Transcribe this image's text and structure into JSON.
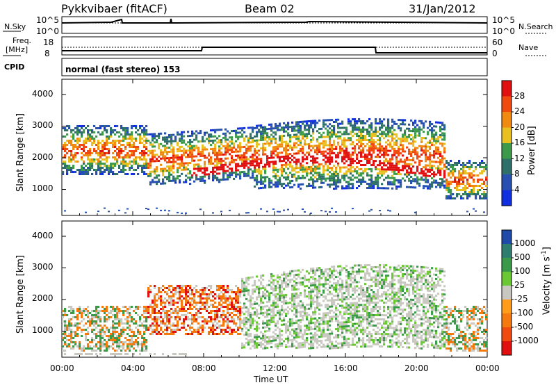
{
  "header": {
    "station": "Pykkvibaer (fitACF)",
    "beam": "Beam 02",
    "date": "31/Jan/2012"
  },
  "status_panels": {
    "nsky_label": "N.Sky",
    "nsearch_label": "N.Search",
    "freq_label_top": "Freq.",
    "freq_label_unit": "[MHz]",
    "nave_label": "Nave",
    "cpid_label": "CPID",
    "cpid_value": "normal (fast stereo) 153",
    "noise_ticks": [
      "10^5",
      "10^0"
    ],
    "freq_ticks": [
      "18",
      "8"
    ],
    "nave_ticks": [
      "60",
      "0"
    ]
  },
  "power_panel": {
    "ylabel": "Slant Range [km]",
    "colorbar_label": "Power [dB]",
    "colorbar_ticks": [
      "28",
      "24",
      "20",
      "16",
      "12",
      "8",
      "4"
    ],
    "colorbar_colors": [
      "#e01010",
      "#f04a10",
      "#f08a10",
      "#e8c020",
      "#3d9a4a",
      "#2f6f6a",
      "#2850b0",
      "#1030e0"
    ]
  },
  "velocity_panel": {
    "ylabel": "Slant Range [km]",
    "colorbar_label": "Velocity [m s-1]",
    "colorbar_ticks": [
      "1000",
      "500",
      "100",
      "25",
      "-25",
      "-100",
      "-500",
      "-1000"
    ],
    "colorbar_colors": [
      "#1f4aa8",
      "#2e7d6e",
      "#3a9a4a",
      "#6ac832",
      "#c8c8c0",
      "#ff9d1a",
      "#f47a10",
      "#f04a10",
      "#e01010"
    ]
  },
  "axes": {
    "xlabel": "Time UT",
    "x_ticks": [
      "00:00",
      "04:00",
      "08:00",
      "12:00",
      "16:00",
      "20:00",
      "00:00"
    ],
    "y_ticks": [
      "4000",
      "3000",
      "2000",
      "1000"
    ]
  },
  "chart_data": [
    {
      "type": "heatmap",
      "title": "Power [dB]",
      "xlabel": "",
      "ylabel": "Slant Range [km]",
      "x_range_hours": [
        0,
        24
      ],
      "y_range_km": [
        180,
        4600
      ],
      "color_scale_ticks": [
        4,
        8,
        12,
        16,
        20,
        24,
        28
      ],
      "features": [
        {
          "name": "scatter band",
          "t_start": 0.0,
          "t_end": 24.0,
          "range_km": [
            600,
            2400
          ]
        },
        {
          "name": "strong echo",
          "t_start": 6.0,
          "t_end": 22.0,
          "range_km": [
            900,
            2100
          ],
          "power_db": 28
        }
      ]
    },
    {
      "type": "heatmap",
      "title": "Velocity [m s-1]",
      "xlabel": "Time UT",
      "ylabel": "Slant Range [km]",
      "x_range_hours": [
        0,
        24
      ],
      "y_range_km": [
        180,
        4600
      ],
      "color_scale_ticks": [
        -1000,
        -500,
        -100,
        -25,
        25,
        100,
        500,
        1000
      ],
      "features": [
        {
          "name": "negative velocity",
          "t_start": 5.0,
          "t_end": 10.0,
          "range_km": [
            900,
            2000
          ],
          "velocity": -300
        },
        {
          "name": "ground scatter",
          "t_start": 10.0,
          "t_end": 22.0,
          "range_km": [
            700,
            2700
          ],
          "velocity": 0
        }
      ]
    }
  ]
}
